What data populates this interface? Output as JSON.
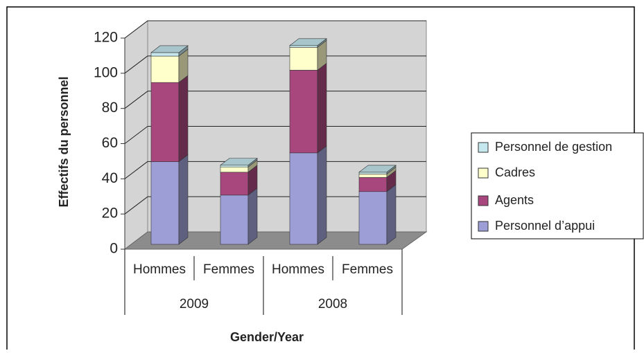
{
  "chart_data": {
    "type": "bar3d_stacked",
    "y_label": "Effectifs du personnel",
    "x_label": "Gender/Year",
    "categories": [
      "Hommes",
      "Femmes",
      "Hommes",
      "Femmes"
    ],
    "groups": [
      "2009",
      "2008"
    ],
    "series": [
      {
        "name": "Personnel d’appui",
        "color": "#9e9ed6",
        "values": [
          47,
          28,
          52,
          30
        ]
      },
      {
        "name": "Agents",
        "color": "#a8477d",
        "values": [
          45,
          13,
          47,
          8
        ]
      },
      {
        "name": "Cadres",
        "color": "#ffffcc",
        "values": [
          15,
          3,
          13,
          2
        ]
      },
      {
        "name": "Personnel de gestion",
        "color": "#c5e8ee",
        "values": [
          2,
          1,
          1,
          1
        ]
      }
    ],
    "ylim": [
      0,
      120
    ],
    "yticks": [
      0,
      20,
      40,
      60,
      80,
      100,
      120
    ],
    "grid": true
  }
}
